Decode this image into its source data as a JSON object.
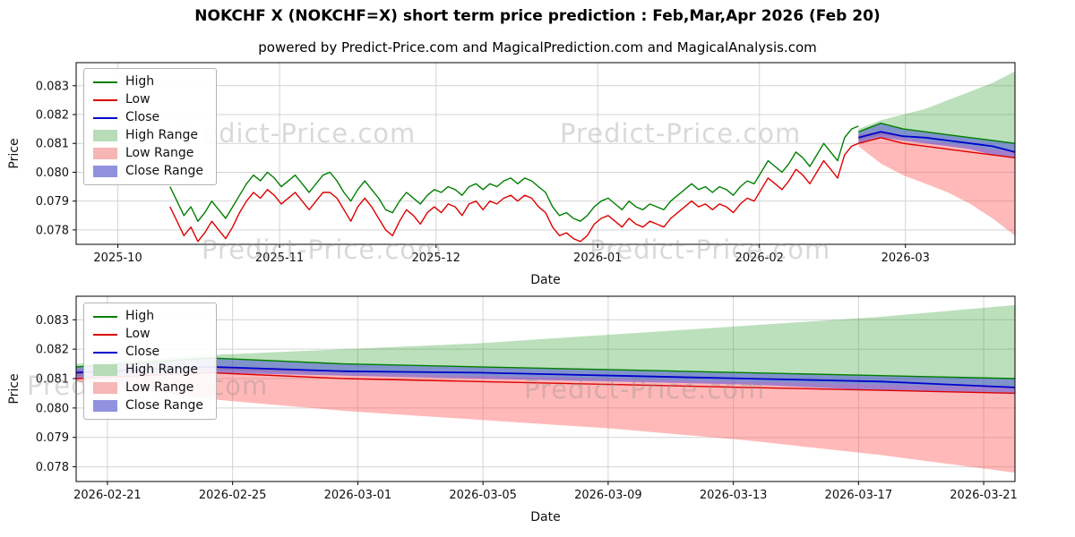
{
  "title": "NOKCHF X (NOKCHF=X) short term price prediction : Feb,Mar,Apr 2026 (Feb 20)",
  "subtitle": "powered by Predict-Price.com and MagicalPrediction.com and MagicalAnalysis.com",
  "watermark": "Predict-Price.com",
  "colors": {
    "high_line": "#007f00",
    "low_line": "#dd0000",
    "close_line": "#0000cc",
    "high_range_fill": "rgba(44,160,44,0.32)",
    "low_range_fill": "rgba(255,80,80,0.40)",
    "close_range_fill": "rgba(70,70,220,0.50)",
    "grid": "#d4d4d4",
    "spine": "#000000"
  },
  "legend": {
    "items": [
      {
        "label": "High",
        "type": "line",
        "color": "#007f00"
      },
      {
        "label": "Low",
        "type": "line",
        "color": "#dd0000"
      },
      {
        "label": "Close",
        "type": "line",
        "color": "#0000cc"
      },
      {
        "label": "High Range",
        "type": "patch",
        "color": "#b7dcb7"
      },
      {
        "label": "Low Range",
        "type": "patch",
        "color": "#f6b6b6"
      },
      {
        "label": "Close Range",
        "type": "patch",
        "color": "#9191e0"
      }
    ]
  },
  "chart_data": [
    {
      "type": "line",
      "title": "",
      "xlabel": "Date",
      "ylabel": "Price",
      "grid": true,
      "legend_position": "upper left",
      "x_domain": [
        0,
        180
      ],
      "ylim": [
        0.0775,
        0.0838
      ],
      "x_ticks": [
        {
          "d": 8,
          "label": "2025-10"
        },
        {
          "d": 39,
          "label": "2025-11"
        },
        {
          "d": 69,
          "label": "2025-12"
        },
        {
          "d": 100,
          "label": "2026-01"
        },
        {
          "d": 131,
          "label": "2026-02"
        },
        {
          "d": 159,
          "label": "2026-03"
        }
      ],
      "y_ticks": [
        {
          "v": 0.078,
          "label": "0.078"
        },
        {
          "v": 0.079,
          "label": "0.079"
        },
        {
          "v": 0.08,
          "label": "0.080"
        },
        {
          "v": 0.081,
          "label": "0.081"
        },
        {
          "v": 0.082,
          "label": "0.082"
        },
        {
          "v": 0.083,
          "label": "0.083"
        }
      ],
      "bands": [
        {
          "name": "high-range",
          "color": "rgba(44,160,44,0.32)",
          "t0": 150,
          "t1": 180,
          "upper": [
            0.0815,
            0.0818,
            0.082,
            0.0822,
            0.0825,
            0.0828,
            0.0831,
            0.0835
          ],
          "lower": [
            0.0811,
            0.0813,
            0.0812,
            0.0811,
            0.081,
            0.0809,
            0.0808,
            0.0807
          ]
        },
        {
          "name": "low-range",
          "color": "rgba(255,80,80,0.40)",
          "t0": 150,
          "t1": 180,
          "upper": [
            0.0813,
            0.0814,
            0.0812,
            0.0811,
            0.081,
            0.0809,
            0.0808,
            0.0807
          ],
          "lower": [
            0.0809,
            0.0803,
            0.0799,
            0.0796,
            0.0793,
            0.0789,
            0.0784,
            0.0778
          ]
        },
        {
          "name": "close-range",
          "color": "rgba(70,70,220,0.50)",
          "t0": 150,
          "t1": 180,
          "upper": [
            0.0814,
            0.0817,
            0.0815,
            0.0814,
            0.0813,
            0.0812,
            0.0811,
            0.081
          ],
          "lower": [
            0.081,
            0.0812,
            0.0811,
            0.081,
            0.0809,
            0.0808,
            0.0806,
            0.0805
          ]
        }
      ],
      "lines": [
        {
          "name": "high-history",
          "color": "#007f00",
          "w": 1.4,
          "t0": 18,
          "t1": 150,
          "values": [
            0.0795,
            0.079,
            0.0785,
            0.0788,
            0.0783,
            0.0786,
            0.079,
            0.0787,
            0.0784,
            0.0788,
            0.0792,
            0.0796,
            0.0799,
            0.0797,
            0.08,
            0.0798,
            0.0795,
            0.0797,
            0.0799,
            0.0796,
            0.0793,
            0.0796,
            0.0799,
            0.08,
            0.0797,
            0.0793,
            0.079,
            0.0794,
            0.0797,
            0.0794,
            0.0791,
            0.0787,
            0.0786,
            0.079,
            0.0793,
            0.0791,
            0.0789,
            0.0792,
            0.0794,
            0.0793,
            0.0795,
            0.0794,
            0.0792,
            0.0795,
            0.0796,
            0.0794,
            0.0796,
            0.0795,
            0.0797,
            0.0798,
            0.0796,
            0.0798,
            0.0797,
            0.0795,
            0.0793,
            0.0788,
            0.0785,
            0.0786,
            0.0784,
            0.0783,
            0.0785,
            0.0788,
            0.079,
            0.0791,
            0.0789,
            0.0787,
            0.079,
            0.0788,
            0.0787,
            0.0789,
            0.0788,
            0.0787,
            0.079,
            0.0792,
            0.0794,
            0.0796,
            0.0794,
            0.0795,
            0.0793,
            0.0795,
            0.0794,
            0.0792,
            0.0795,
            0.0797,
            0.0796,
            0.08,
            0.0804,
            0.0802,
            0.08,
            0.0803,
            0.0807,
            0.0805,
            0.0802,
            0.0806,
            0.081,
            0.0807,
            0.0804,
            0.0812,
            0.0815,
            0.0816
          ]
        },
        {
          "name": "low-history",
          "color": "#dd0000",
          "w": 1.4,
          "t0": 18,
          "t1": 150,
          "values": [
            0.0788,
            0.0783,
            0.0778,
            0.0781,
            0.0776,
            0.0779,
            0.0783,
            0.078,
            0.0777,
            0.0781,
            0.0786,
            0.079,
            0.0793,
            0.0791,
            0.0794,
            0.0792,
            0.0789,
            0.0791,
            0.0793,
            0.079,
            0.0787,
            0.079,
            0.0793,
            0.0793,
            0.0791,
            0.0787,
            0.0783,
            0.0788,
            0.0791,
            0.0788,
            0.0784,
            0.078,
            0.0778,
            0.0783,
            0.0787,
            0.0785,
            0.0782,
            0.0786,
            0.0788,
            0.0786,
            0.0789,
            0.0788,
            0.0785,
            0.0789,
            0.079,
            0.0787,
            0.079,
            0.0789,
            0.0791,
            0.0792,
            0.079,
            0.0792,
            0.0791,
            0.0788,
            0.0786,
            0.0781,
            0.0778,
            0.0779,
            0.0777,
            0.0776,
            0.0778,
            0.0782,
            0.0784,
            0.0785,
            0.0783,
            0.0781,
            0.0784,
            0.0782,
            0.0781,
            0.0783,
            0.0782,
            0.0781,
            0.0784,
            0.0786,
            0.0788,
            0.079,
            0.0788,
            0.0789,
            0.0787,
            0.0789,
            0.0788,
            0.0786,
            0.0789,
            0.0791,
            0.079,
            0.0794,
            0.0798,
            0.0796,
            0.0794,
            0.0797,
            0.0801,
            0.0799,
            0.0796,
            0.08,
            0.0804,
            0.0801,
            0.0798,
            0.0806,
            0.0809,
            0.081
          ]
        },
        {
          "name": "high-forecast",
          "color": "#007f00",
          "w": 1.4,
          "t0": 150,
          "t1": 180,
          "values": [
            0.0814,
            0.0817,
            0.0815,
            0.0814,
            0.0813,
            0.0812,
            0.0811,
            0.081
          ]
        },
        {
          "name": "low-forecast",
          "color": "#dd0000",
          "w": 1.4,
          "t0": 150,
          "t1": 180,
          "values": [
            0.081,
            0.0812,
            0.081,
            0.0809,
            0.0808,
            0.0807,
            0.0806,
            0.0805
          ]
        },
        {
          "name": "close-forecast",
          "color": "#0000cc",
          "w": 1.8,
          "t0": 150,
          "t1": 180,
          "values": [
            0.0812,
            0.0814,
            0.08125,
            0.0812,
            0.0811,
            0.081,
            0.0809,
            0.0807
          ]
        }
      ]
    },
    {
      "type": "line",
      "title": "",
      "xlabel": "Date",
      "ylabel": "Price",
      "grid": true,
      "legend_position": "upper left",
      "x_domain": [
        0,
        30
      ],
      "ylim": [
        0.0775,
        0.0838
      ],
      "x_ticks": [
        {
          "d": 1,
          "label": "2026-02-21"
        },
        {
          "d": 5,
          "label": "2026-02-25"
        },
        {
          "d": 9,
          "label": "2026-03-01"
        },
        {
          "d": 13,
          "label": "2026-03-05"
        },
        {
          "d": 17,
          "label": "2026-03-09"
        },
        {
          "d": 21,
          "label": "2026-03-13"
        },
        {
          "d": 25,
          "label": "2026-03-17"
        },
        {
          "d": 29,
          "label": "2026-03-21"
        }
      ],
      "y_ticks": [
        {
          "v": 0.078,
          "label": "0.078"
        },
        {
          "v": 0.079,
          "label": "0.079"
        },
        {
          "v": 0.08,
          "label": "0.080"
        },
        {
          "v": 0.081,
          "label": "0.081"
        },
        {
          "v": 0.082,
          "label": "0.082"
        },
        {
          "v": 0.083,
          "label": "0.083"
        }
      ],
      "bands": [
        {
          "name": "high-range",
          "color": "rgba(44,160,44,0.32)",
          "t0": 0,
          "t1": 30,
          "upper": [
            0.0815,
            0.0818,
            0.082,
            0.0822,
            0.0825,
            0.0828,
            0.0831,
            0.0835
          ],
          "lower": [
            0.0811,
            0.0813,
            0.0812,
            0.0811,
            0.081,
            0.0809,
            0.0808,
            0.0807
          ]
        },
        {
          "name": "low-range",
          "color": "rgba(255,80,80,0.40)",
          "t0": 0,
          "t1": 30,
          "upper": [
            0.0813,
            0.0814,
            0.0812,
            0.0811,
            0.081,
            0.0809,
            0.0808,
            0.0807
          ],
          "lower": [
            0.0809,
            0.0803,
            0.0799,
            0.0796,
            0.0793,
            0.0789,
            0.0784,
            0.0778
          ]
        },
        {
          "name": "close-range",
          "color": "rgba(70,70,220,0.50)",
          "t0": 0,
          "t1": 30,
          "upper": [
            0.0814,
            0.0817,
            0.0815,
            0.0814,
            0.0813,
            0.0812,
            0.0811,
            0.081
          ],
          "lower": [
            0.081,
            0.0812,
            0.0811,
            0.081,
            0.0809,
            0.0808,
            0.0806,
            0.0805
          ]
        }
      ],
      "lines": [
        {
          "name": "high-forecast",
          "color": "#007f00",
          "w": 1.4,
          "t0": 0,
          "t1": 30,
          "values": [
            0.0814,
            0.0817,
            0.0815,
            0.0814,
            0.0813,
            0.0812,
            0.0811,
            0.081
          ]
        },
        {
          "name": "low-forecast",
          "color": "#dd0000",
          "w": 1.4,
          "t0": 0,
          "t1": 30,
          "values": [
            0.081,
            0.0812,
            0.081,
            0.0809,
            0.0808,
            0.0807,
            0.0806,
            0.0805
          ]
        },
        {
          "name": "close-forecast",
          "color": "#0000cc",
          "w": 1.8,
          "t0": 0,
          "t1": 30,
          "values": [
            0.0812,
            0.0814,
            0.08125,
            0.0812,
            0.0811,
            0.081,
            0.0809,
            0.0807
          ]
        }
      ]
    }
  ]
}
